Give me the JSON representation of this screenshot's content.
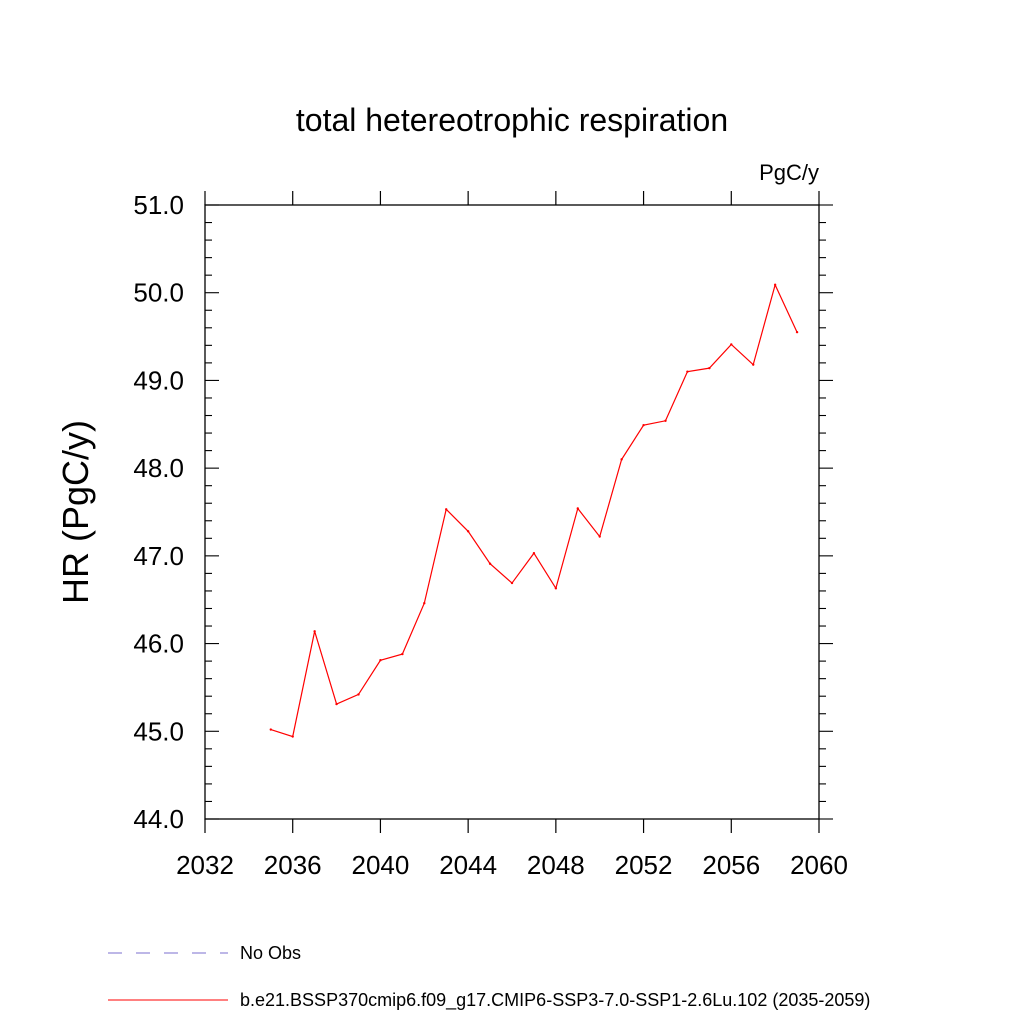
{
  "chart_data": {
    "type": "line",
    "title": "total hetereotrophic respiration",
    "units": "PgC/y",
    "xlabel": "",
    "ylabel": "HR  (PgC/y)",
    "xlim": [
      2032,
      2060
    ],
    "ylim": [
      44.0,
      51.0
    ],
    "x_ticks": [
      2032,
      2036,
      2040,
      2044,
      2048,
      2052,
      2056,
      2060
    ],
    "x_tick_labels": [
      "2032",
      "2036",
      "2040",
      "2044",
      "2048",
      "2052",
      "2056",
      "2060"
    ],
    "y_ticks": [
      44.0,
      45.0,
      46.0,
      47.0,
      48.0,
      49.0,
      50.0,
      51.0
    ],
    "y_tick_labels": [
      "44.0",
      "45.0",
      "46.0",
      "47.0",
      "48.0",
      "49.0",
      "50.0",
      "51.0"
    ],
    "grid": false,
    "legend_position": "bottom",
    "series": [
      {
        "name": "b.e21.BSSP370cmip6.f09_g17.CMIP6-SSP3-7.0-SSP1-2.6Lu.102 (2035-2059)",
        "color": "#ff0000",
        "style": "solid",
        "x": [
          2035,
          2036,
          2037,
          2038,
          2039,
          2040,
          2041,
          2042,
          2043,
          2044,
          2045,
          2046,
          2047,
          2048,
          2049,
          2050,
          2051,
          2052,
          2053,
          2054,
          2055,
          2056,
          2057,
          2058,
          2059
        ],
        "y": [
          45.02,
          44.94,
          46.14,
          45.31,
          45.42,
          45.81,
          45.88,
          46.46,
          47.53,
          47.28,
          46.91,
          46.69,
          47.03,
          46.63,
          47.54,
          47.22,
          48.1,
          48.49,
          48.54,
          49.1,
          49.14,
          49.41,
          49.18,
          50.09,
          49.55
        ]
      }
    ],
    "legend": [
      {
        "label": "No Obs",
        "color": "#7b6fcf",
        "style": "dashed"
      },
      {
        "label": "b.e21.BSSP370cmip6.f09_g17.CMIP6-SSP3-7.0-SSP1-2.6Lu.102 (2035-2059)",
        "color": "#ff0000",
        "style": "solid"
      }
    ]
  }
}
